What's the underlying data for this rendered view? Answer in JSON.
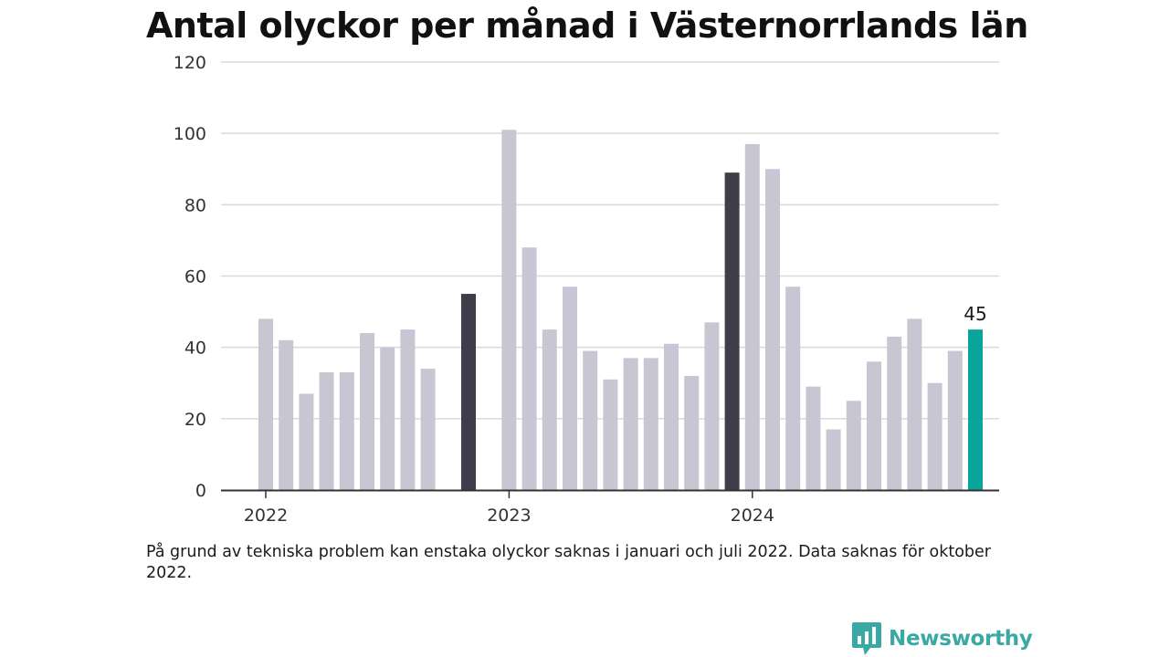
{
  "title": "Antal olyckor per månad i Västernorrlands län",
  "note": "På grund av tekniska problem kan enstaka olyckor saknas i januari och juli 2022. Data saknas för oktober 2022.",
  "brand": {
    "name": "Newsworthy",
    "icon": "newsworthy-logo-icon",
    "color": "#3aa8a4"
  },
  "chart_data": {
    "type": "bar",
    "ylim": [
      0,
      120
    ],
    "yticks": [
      0,
      20,
      40,
      60,
      80,
      100,
      120
    ],
    "xticks": [
      {
        "label": "2022",
        "at": 0
      },
      {
        "label": "2023",
        "at": 12
      },
      {
        "label": "2024",
        "at": 24
      }
    ],
    "grid": true,
    "colors": {
      "default": "#c8c6d3",
      "november": "#403d4a",
      "latest": "#0aa59a"
    },
    "values": [
      48,
      42,
      27,
      33,
      33,
      44,
      40,
      45,
      34,
      null,
      55,
      null,
      101,
      68,
      45,
      57,
      39,
      31,
      37,
      37,
      41,
      32,
      47,
      89,
      97,
      90,
      57,
      29,
      17,
      25,
      36,
      43,
      48,
      30,
      39,
      45
    ],
    "highlight": {
      "dark": [
        10,
        23
      ],
      "latest": 35
    },
    "data_labels": [
      {
        "index": 35,
        "text": "45"
      }
    ]
  }
}
